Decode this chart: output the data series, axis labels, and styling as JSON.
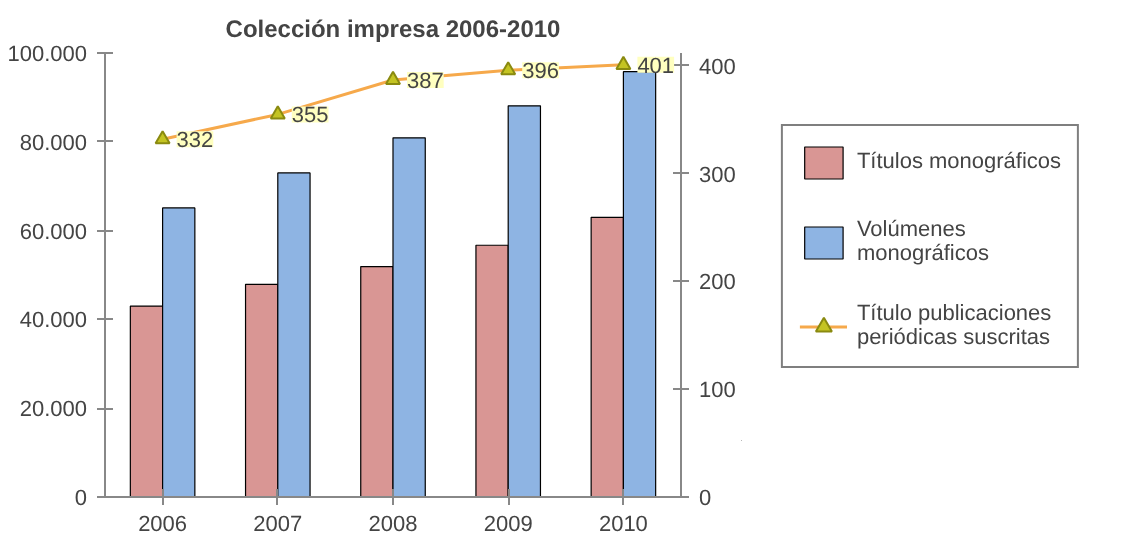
{
  "chart_data": {
    "type": "bar",
    "title": "Colección impresa 2006-2010",
    "categories": [
      "2006",
      "2007",
      "2008",
      "2009",
      "2010"
    ],
    "series": [
      {
        "name": "Títulos monográficos",
        "color": "#d99694",
        "values": [
          43000,
          47900,
          51900,
          56700,
          63000
        ]
      },
      {
        "name": "Volúmenes monográficos",
        "color": "#8eb4e3",
        "values": [
          65100,
          73000,
          80900,
          88100,
          95800
        ]
      },
      {
        "name": "Título publicaciones periódicas suscritas",
        "type": "line",
        "axis": "y2",
        "color": "#f6a94b",
        "marker": "triangle",
        "values": [
          332,
          355,
          387,
          396,
          401
        ],
        "value_labels": [
          "332",
          "355",
          "387",
          "396",
          "401"
        ]
      }
    ],
    "ylim": [
      0,
      100000
    ],
    "yticks": [
      {
        "value": 0,
        "label": "0"
      },
      {
        "value": 20000,
        "label": "20.000"
      },
      {
        "value": 40000,
        "label": "40.000"
      },
      {
        "value": 60000,
        "label": "60.000"
      },
      {
        "value": 80000,
        "label": "80.000"
      },
      {
        "value": 100000,
        "label": "100.000"
      }
    ],
    "y2lim": [
      0,
      412
    ],
    "y2ticks": [
      0,
      100,
      200,
      300,
      400
    ],
    "legend": "right"
  }
}
